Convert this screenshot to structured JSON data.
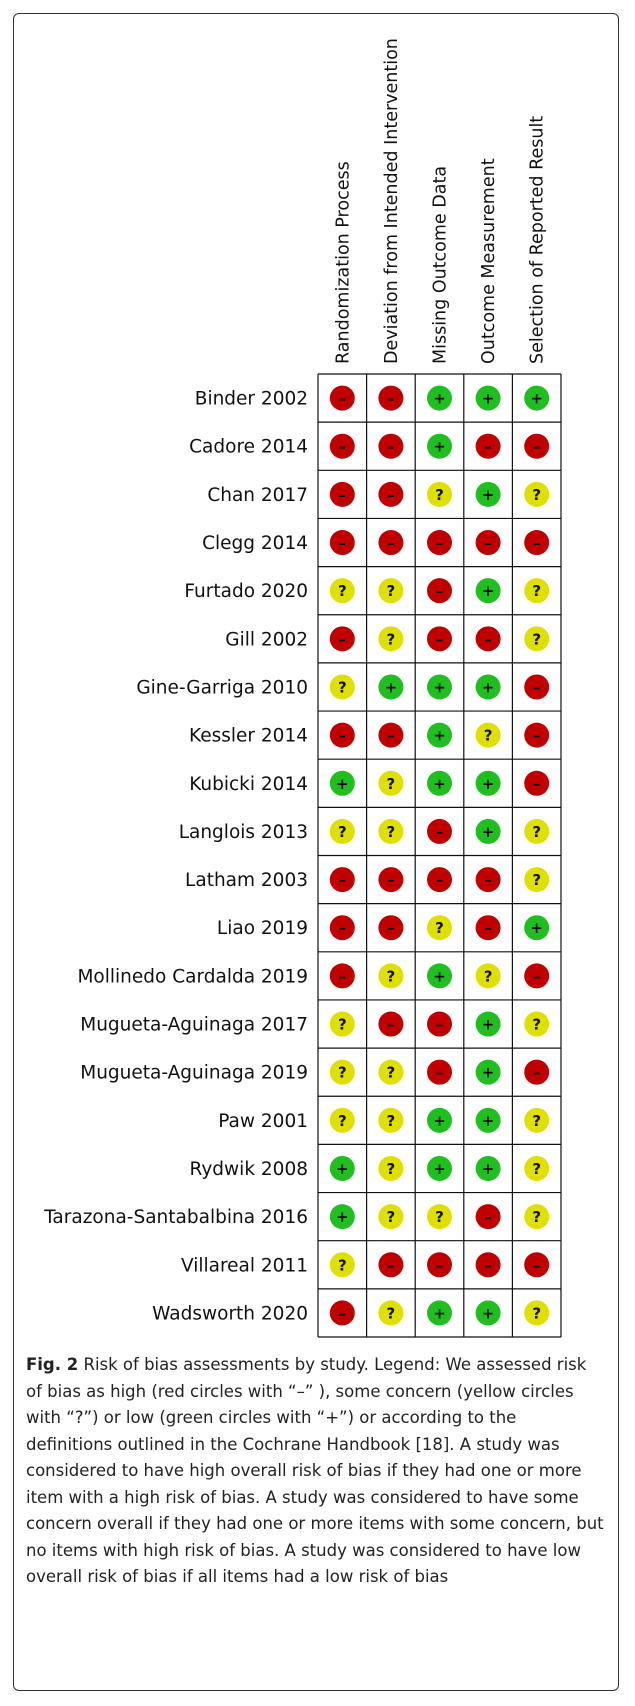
{
  "figure": {
    "columns": [
      "Randomization Process",
      "Deviation from Intended Intervention",
      "Missing Outcome Data",
      "Outcome Measurement",
      "Selection of Reported Result"
    ],
    "rows": [
      {
        "study": "Binder 2002",
        "cells": [
          "–",
          "–",
          "+",
          "+",
          "+"
        ]
      },
      {
        "study": "Cadore 2014",
        "cells": [
          "–",
          "–",
          "+",
          "–",
          "–"
        ]
      },
      {
        "study": "Chan 2017",
        "cells": [
          "–",
          "–",
          "?",
          "+",
          "?"
        ]
      },
      {
        "study": "Clegg 2014",
        "cells": [
          "–",
          "–",
          "–",
          "–",
          "–"
        ]
      },
      {
        "study": "Furtado 2020",
        "cells": [
          "?",
          "?",
          "–",
          "+",
          "?"
        ]
      },
      {
        "study": "Gill 2002",
        "cells": [
          "–",
          "?",
          "–",
          "–",
          "?"
        ]
      },
      {
        "study": "Gine-Garriga 2010",
        "cells": [
          "?",
          "+",
          "+",
          "+",
          "–"
        ]
      },
      {
        "study": "Kessler 2014",
        "cells": [
          "–",
          "–",
          "+",
          "?",
          "–"
        ]
      },
      {
        "study": "Kubicki 2014",
        "cells": [
          "+",
          "?",
          "+",
          "+",
          "–"
        ]
      },
      {
        "study": "Langlois 2013",
        "cells": [
          "?",
          "?",
          "–",
          "+",
          "?"
        ]
      },
      {
        "study": "Latham 2003",
        "cells": [
          "–",
          "–",
          "–",
          "–",
          "?"
        ]
      },
      {
        "study": "Liao 2019",
        "cells": [
          "–",
          "–",
          "?",
          "–",
          "+"
        ]
      },
      {
        "study": "Mollinedo Cardalda 2019",
        "cells": [
          "–",
          "?",
          "+",
          "?",
          "–"
        ]
      },
      {
        "study": "Mugueta-Aguinaga 2017",
        "cells": [
          "?",
          "–",
          "–",
          "+",
          "?"
        ]
      },
      {
        "study": "Mugueta-Aguinaga 2019",
        "cells": [
          "?",
          "?",
          "–",
          "+",
          "–"
        ]
      },
      {
        "study": "Paw 2001",
        "cells": [
          "?",
          "?",
          "+",
          "+",
          "?"
        ]
      },
      {
        "study": "Rydwik 2008",
        "cells": [
          "+",
          "?",
          "+",
          "+",
          "?"
        ]
      },
      {
        "study": "Tarazona-Santabalbina 2016",
        "cells": [
          "+",
          "?",
          "?",
          "–",
          "?"
        ]
      },
      {
        "study": "Villareal 2011",
        "cells": [
          "?",
          "–",
          "–",
          "–",
          "–"
        ]
      },
      {
        "study": "Wadsworth 2020",
        "cells": [
          "–",
          "?",
          "+",
          "+",
          "?"
        ]
      }
    ],
    "symbol_colors": {
      "–": "#c00000",
      "?": "#e0e000",
      "+": "#1fbf1f"
    },
    "caption": {
      "label": "Fig. 2",
      "text": "Risk of bias assessments by study. Legend: We assessed risk of bias as high (red circles with “–” ), some concern (yellow circles with “?”) or low (green circles with “+”) or according to the definitions outlined in the Cochrane Handbook [18]. A study was considered to have high overall risk of bias if they had one or more item with a high risk of bias. A study was considered to have some concern overall if they had one or more items with some concern, but no items with high risk of bias. A study was considered to have low overall risk of bias if all items had a low risk of bias"
    }
  }
}
